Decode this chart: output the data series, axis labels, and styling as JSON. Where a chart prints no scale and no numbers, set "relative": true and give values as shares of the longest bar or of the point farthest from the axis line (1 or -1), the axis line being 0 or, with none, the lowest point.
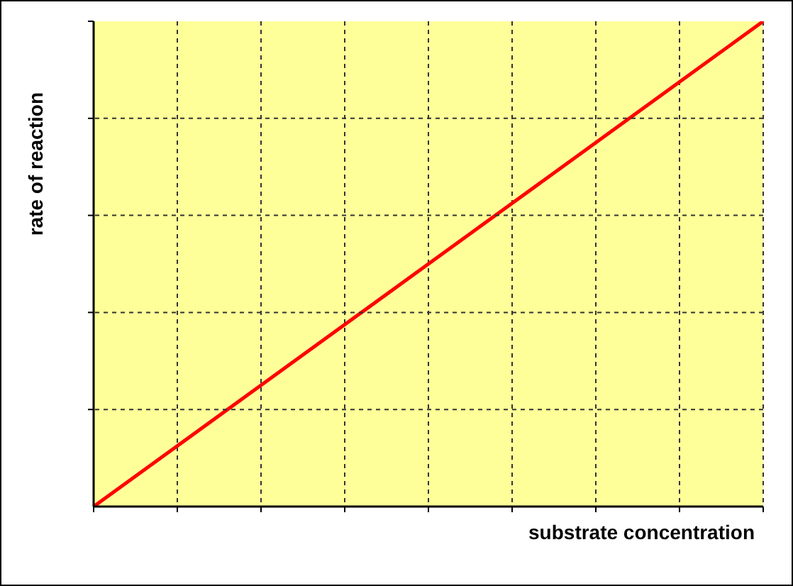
{
  "chart_data": {
    "type": "line",
    "xlabel": "substrate concentration",
    "ylabel": "rate of reaction",
    "categories": [
      null,
      null,
      null,
      null,
      null,
      null,
      null,
      null,
      null
    ],
    "series": [
      {
        "color": "#ff0000",
        "values": [
          0,
          0.125,
          0.25,
          0.375,
          0.5,
          0.625,
          0.75,
          0.875,
          1
        ]
      }
    ],
    "relative": true,
    "grid": true,
    "marker": "none",
    "line_style": "solid"
  }
}
